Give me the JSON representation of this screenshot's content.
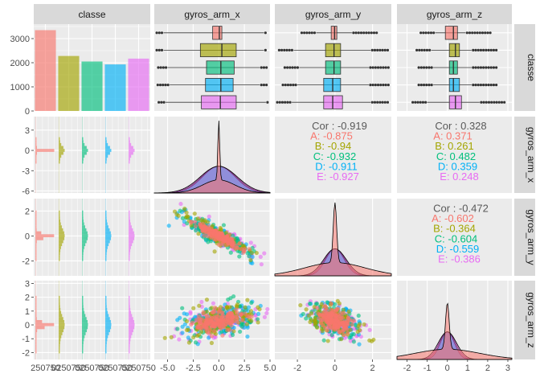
{
  "chart_data": {
    "type": "pairs",
    "variables": [
      "classe",
      "gyros_arm_x",
      "gyros_arm_y",
      "gyros_arm_z"
    ],
    "classes": [
      "A",
      "B",
      "C",
      "D",
      "E"
    ],
    "colors": {
      "A": "#F8766D",
      "B": "#A3A500",
      "C": "#00BF7D",
      "D": "#00B0F6",
      "E": "#E76BF3"
    },
    "class_counts": {
      "values": [
        3350,
        2280,
        2050,
        1930,
        2170
      ],
      "ylim": [
        0,
        3600
      ],
      "yticks": [
        "0",
        "1000",
        "2000",
        "3000"
      ]
    },
    "boxplots": {
      "gyros_arm_x": {
        "whisker": [
          [
            -5.4,
            4.4
          ],
          [
            -5.4,
            4.4
          ],
          [
            -5.0,
            4.0
          ],
          [
            -4.8,
            4.0
          ],
          [
            -5.2,
            4.6
          ]
        ],
        "box": [
          [
            -0.6,
            0.3
          ],
          [
            -1.8,
            1.7
          ],
          [
            -1.2,
            1.5
          ],
          [
            -1.3,
            1.4
          ],
          [
            -1.7,
            1.7
          ]
        ],
        "median": [
          0.05,
          0.3,
          0.2,
          0.2,
          0.15
        ]
      },
      "gyros_arm_y": {
        "whisker": [
          [
            -1.0,
            0.9
          ],
          [
            -2.2,
            1.9
          ],
          [
            -1.9,
            1.8
          ],
          [
            -2.0,
            1.8
          ],
          [
            -2.3,
            1.9
          ]
        ],
        "box": [
          [
            -0.2,
            0.1
          ],
          [
            -0.5,
            0.3
          ],
          [
            -0.5,
            0.3
          ],
          [
            -0.6,
            0.3
          ],
          [
            -0.6,
            0.4
          ]
        ],
        "median": [
          -0.02,
          -0.05,
          -0.05,
          -0.12,
          -0.12
        ]
      },
      "gyros_arm_z": {
        "whisker": [
          [
            -0.6,
            0.9
          ],
          [
            -0.8,
            1.2
          ],
          [
            -0.7,
            1.2
          ],
          [
            -0.7,
            1.2
          ],
          [
            -1.0,
            1.6
          ]
        ],
        "box": [
          [
            -0.1,
            0.5
          ],
          [
            0.1,
            0.6
          ],
          [
            0.1,
            0.5
          ],
          [
            0.1,
            0.6
          ],
          [
            0.1,
            0.7
          ]
        ],
        "median": [
          0.3,
          0.4,
          0.3,
          0.3,
          0.4
        ]
      }
    },
    "correlations": {
      "x_y": {
        "overall": "-0.919",
        "by_class": [
          "-0.875",
          "-0.94",
          "-0.932",
          "-0.911",
          "-0.927"
        ]
      },
      "x_z": {
        "overall": "0.328",
        "by_class": [
          "0.371",
          "0.261",
          "0.482",
          "0.359",
          "0.248"
        ]
      },
      "y_z": {
        "overall": "-0.472",
        "by_class": [
          "-0.602",
          "-0.364",
          "-0.604",
          "-0.559",
          "-0.386"
        ]
      }
    },
    "cor_label": "Cor",
    "axes": {
      "gyros_arm_x": {
        "lim": [
          -6.3,
          5.0
        ],
        "ticks": [
          "-5.0",
          "-2.5",
          "0.0",
          "2.5",
          "5.0"
        ],
        "tick_values": [
          -5,
          -2.5,
          0,
          2.5,
          5
        ],
        "row_ticks": [
          "3",
          "0",
          "-3",
          "-6"
        ],
        "row_tick_values": [
          3,
          0,
          -3,
          -6
        ]
      },
      "gyros_arm_y": {
        "lim": [
          -3.2,
          3.0
        ],
        "ticks": [
          "-2",
          "0",
          "2"
        ],
        "tick_values": [
          -2,
          0,
          2
        ],
        "row_ticks": [
          "2",
          "0",
          "-2"
        ],
        "row_tick_values": [
          2,
          0,
          -2
        ]
      },
      "gyros_arm_z": {
        "lim": [
          -2.5,
          3.2
        ],
        "ticks": [
          "-2",
          "-1",
          "0",
          "1",
          "2",
          "3"
        ],
        "tick_values": [
          -2,
          -1,
          0,
          1,
          2,
          3
        ],
        "row_ticks": [
          "3",
          "2",
          "1",
          "0",
          "-1",
          "-2"
        ],
        "row_tick_values": [
          3,
          2,
          1,
          0,
          -1,
          -2
        ]
      }
    },
    "classe_bottom_ticks": [
      "250750",
      "0250750",
      "0250750",
      "0250750",
      "0250750"
    ],
    "legend": "none",
    "grid": true
  }
}
